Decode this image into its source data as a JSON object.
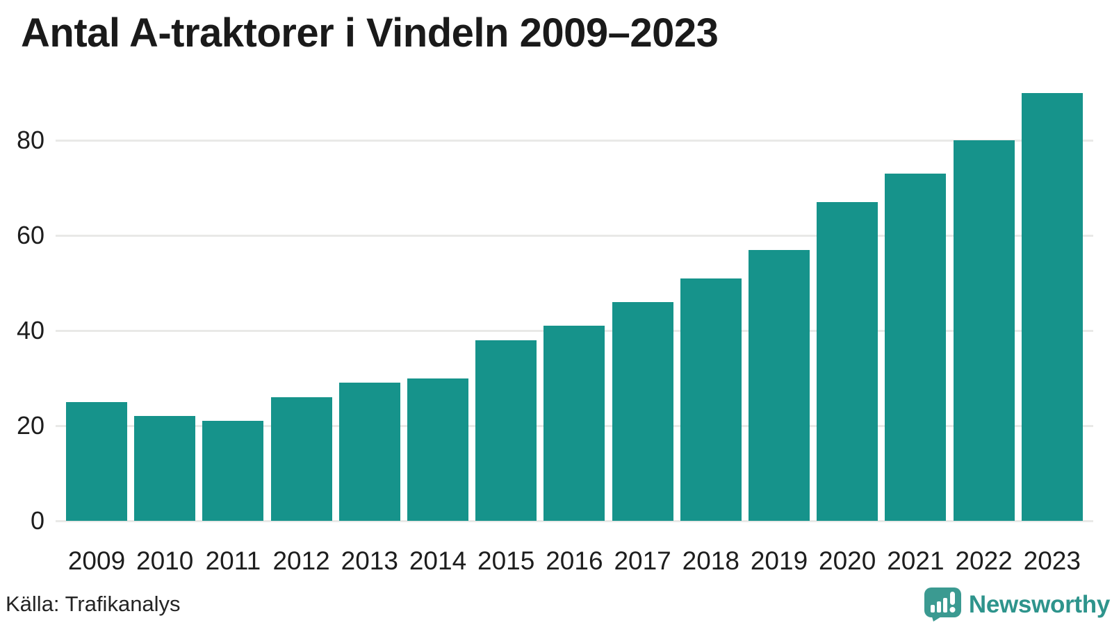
{
  "chart_data": {
    "type": "bar",
    "title": "Antal A-traktorer i Vindeln 2009–2023",
    "categories": [
      "2009",
      "2010",
      "2011",
      "2012",
      "2013",
      "2014",
      "2015",
      "2016",
      "2017",
      "2018",
      "2019",
      "2020",
      "2021",
      "2022",
      "2023"
    ],
    "values": [
      25,
      22,
      21,
      26,
      29,
      30,
      38,
      41,
      46,
      51,
      57,
      67,
      73,
      80,
      90
    ],
    "xlabel": "",
    "ylabel": "",
    "yticks": [
      0,
      20,
      40,
      60,
      80
    ],
    "ylim": [
      0,
      90
    ],
    "grid": true,
    "legend_position": "none",
    "series_name": "Antal A-traktorer"
  },
  "footer": {
    "source": "Källa: Trafikanalys",
    "brand": "Newsworthy"
  },
  "colors": {
    "bar": "#16938B",
    "grid": "#E9E9E7",
    "text": "#1D1D1D",
    "title_text": "#1A1A1A",
    "brand_teal": "#2E948C",
    "logo_icon_teal": "#3B9A91",
    "background": "#FFFFFF"
  }
}
